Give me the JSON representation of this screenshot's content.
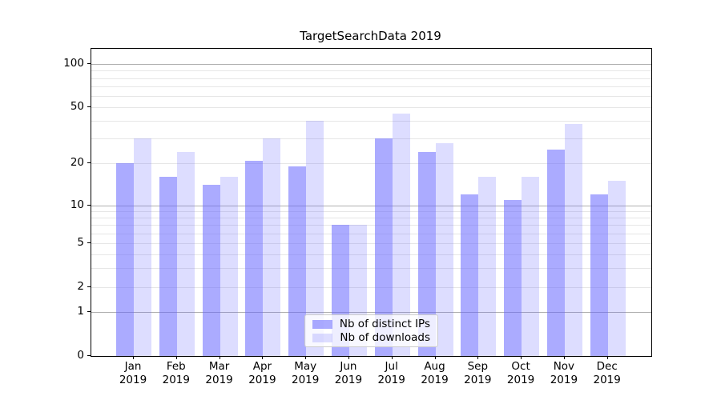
{
  "chart_data": {
    "type": "bar",
    "title": "TargetSearchData 2019",
    "categories": [
      [
        "Jan",
        "2019"
      ],
      [
        "Feb",
        "2019"
      ],
      [
        "Mar",
        "2019"
      ],
      [
        "Apr",
        "2019"
      ],
      [
        "May",
        "2019"
      ],
      [
        "Jun",
        "2019"
      ],
      [
        "Jul",
        "2019"
      ],
      [
        "Aug",
        "2019"
      ],
      [
        "Sep",
        "2019"
      ],
      [
        "Oct",
        "2019"
      ],
      [
        "Nov",
        "2019"
      ],
      [
        "Dec",
        "2019"
      ]
    ],
    "series": [
      {
        "name": "Nb of distinct IPs",
        "values": [
          20,
          16,
          14,
          21,
          19,
          7,
          30,
          24,
          12,
          11,
          25,
          12
        ],
        "color": "rgba(102,102,255,0.55)"
      },
      {
        "name": "Nb of downloads",
        "values": [
          30,
          24,
          16,
          30,
          40,
          7,
          45,
          28,
          16,
          16,
          38,
          15
        ],
        "color": "rgba(102,102,255,0.22)"
      }
    ],
    "y_axis": {
      "scale": "symlog",
      "tick_labels": [
        "0",
        "1",
        "2",
        "5",
        "10",
        "20",
        "50",
        "100"
      ],
      "tick_values": [
        0,
        1,
        2,
        5,
        10,
        20,
        50,
        100
      ],
      "minor_gridline_values": [
        2,
        3,
        4,
        5,
        6,
        7,
        8,
        9,
        20,
        30,
        40,
        50,
        60,
        70,
        80,
        90
      ],
      "major_gridline_values": [
        1,
        10,
        100
      ],
      "ylim": [
        0,
        128
      ]
    },
    "legend_position": "lower center",
    "grid": true,
    "colors": {
      "minor_grid": "#e6e6e6",
      "major_grid": "#b0b0b0",
      "axis": "#000000"
    }
  }
}
